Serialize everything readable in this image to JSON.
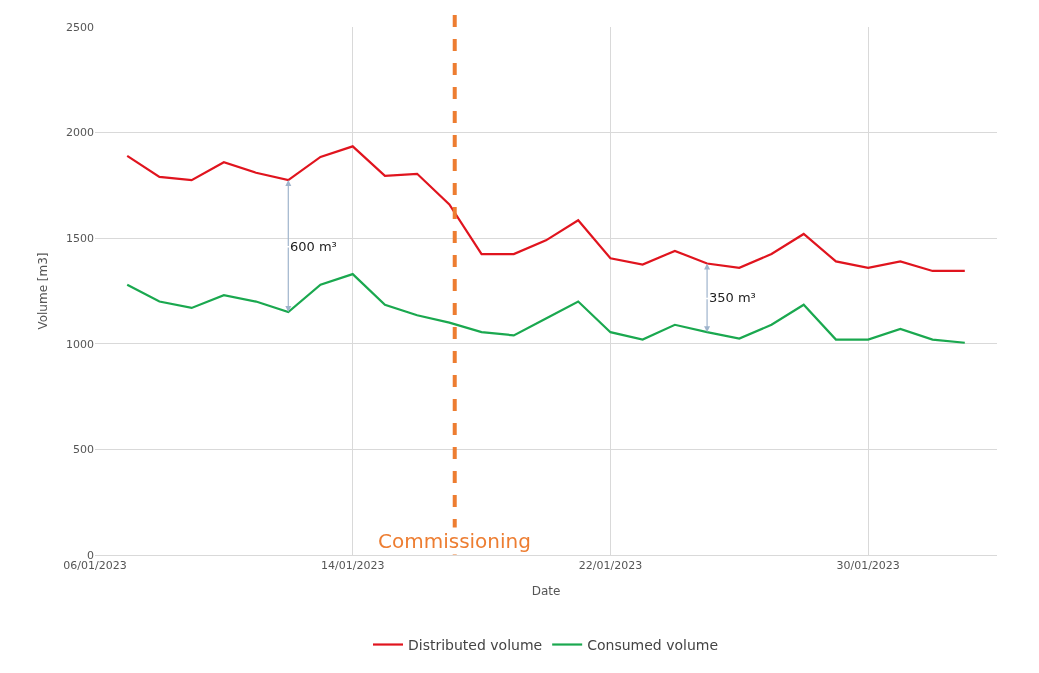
{
  "chart_data": {
    "type": "line",
    "xlabel": "Date",
    "ylabel": "Volume [m3]",
    "x": [
      "2023-01-07",
      "2023-01-08",
      "2023-01-09",
      "2023-01-10",
      "2023-01-11",
      "2023-01-12",
      "2023-01-13",
      "2023-01-14",
      "2023-01-15",
      "2023-01-16",
      "2023-01-17",
      "2023-01-18",
      "2023-01-19",
      "2023-01-20",
      "2023-01-21",
      "2023-01-22",
      "2023-01-23",
      "2023-01-24",
      "2023-01-25",
      "2023-01-26",
      "2023-01-27",
      "2023-01-28",
      "2023-01-29",
      "2023-01-30",
      "2023-01-31",
      "2023-02-01",
      "2023-02-02"
    ],
    "series": [
      {
        "name": "Distributed volume",
        "color": "#e0141e",
        "values": [
          1890,
          1790,
          1775,
          1860,
          1810,
          1775,
          1885,
          1935,
          1795,
          1805,
          1660,
          1425,
          1425,
          1490,
          1585,
          1405,
          1375,
          1440,
          1380,
          1360,
          1425,
          1520,
          1390,
          1360,
          1390,
          1345,
          1345
        ]
      },
      {
        "name": "Consumed volume",
        "color": "#1aa84f",
        "values": [
          1280,
          1200,
          1170,
          1230,
          1200,
          1150,
          1280,
          1330,
          1185,
          1135,
          1100,
          1055,
          1040,
          1120,
          1200,
          1055,
          1020,
          1090,
          1055,
          1025,
          1090,
          1185,
          1020,
          1020,
          1070,
          1020,
          1005
        ]
      }
    ],
    "xlim": [
      "2023-01-06",
      "2023-02-03"
    ],
    "xticks": [
      {
        "value": "2023-01-06",
        "label": "06/01/2023"
      },
      {
        "value": "2023-01-14",
        "label": "14/01/2023"
      },
      {
        "value": "2023-01-22",
        "label": "22/01/2023"
      },
      {
        "value": "2023-01-30",
        "label": "30/01/2023"
      }
    ],
    "ylim": [
      0,
      2500
    ],
    "yticks": [
      0,
      500,
      1000,
      1500,
      2000,
      2500
    ],
    "grid": true,
    "legend": "bottom",
    "marker": "none",
    "line_style": "solid",
    "ref_lines": [
      {
        "axis": "x",
        "value": "2023-01-17T04:00",
        "label": "Commissioning",
        "color": "#ed7d31",
        "line_style": "dashed"
      }
    ],
    "annotations": [
      {
        "text": "600 m³",
        "x": "2023-01-12",
        "y": 1775
      },
      {
        "text": "350 m³",
        "x": "2023-01-25",
        "y": 1380
      }
    ]
  }
}
